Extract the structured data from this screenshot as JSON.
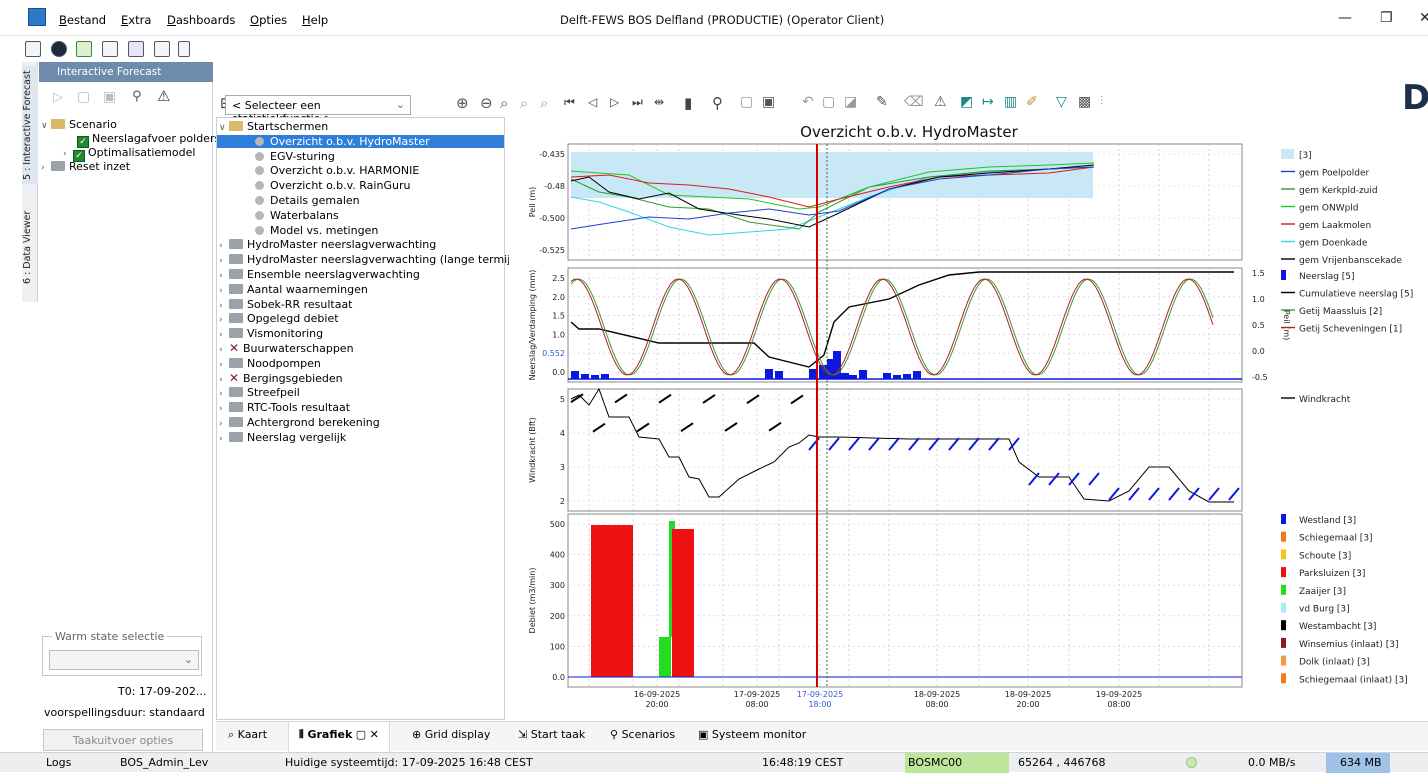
{
  "window": {
    "title": "Delft-FEWS BOS Delfland (PRODUCTIE)  (Operator Client)",
    "minimize": "—",
    "maximize": "❐",
    "close": "✕"
  },
  "menu": [
    "Bestand",
    "Extra",
    "Dashboards",
    "Opties",
    "Help"
  ],
  "left_tabs": [
    "5 : Interactive Forecast",
    "6 : Data Viewer"
  ],
  "forecast_panel": {
    "title": "Interactive Forecast",
    "tree": [
      {
        "label": "Scenario",
        "type": "folder"
      },
      {
        "label": "Neerslagafvoer polders",
        "type": "checked"
      },
      {
        "label": "Optimalisatiemodel",
        "type": "checked"
      },
      {
        "label": "Reset inzet",
        "type": "folder"
      }
    ],
    "warm_state_label": "Warm state selectie",
    "t0": "T0:  17-09-202...",
    "duration": "voorspellingsduur:  standaard",
    "options_button": "Taakuitvoer opties"
  },
  "stat_select": {
    "value": "< Selecteer een statistiekfunctie >"
  },
  "display_tree": [
    {
      "label": "Startschermen",
      "type": "open"
    },
    {
      "label": "Overzicht o.b.v. HydroMaster",
      "type": "dot",
      "selected": true
    },
    {
      "label": "EGV-sturing",
      "type": "dot"
    },
    {
      "label": "Overzicht o.b.v. HARMONIE",
      "type": "dot"
    },
    {
      "label": "Overzicht o.b.v. RainGuru",
      "type": "dot"
    },
    {
      "label": "Details gemalen",
      "type": "dot"
    },
    {
      "label": "Waterbalans",
      "type": "dot"
    },
    {
      "label": "Model vs. metingen",
      "type": "dot"
    },
    {
      "label": "HydroMaster neerslagverwachting",
      "type": "folder"
    },
    {
      "label": "HydroMaster neerslagverwachting (lange termijn)",
      "type": "folder"
    },
    {
      "label": "Ensemble neerslagverwachting",
      "type": "folder"
    },
    {
      "label": "Aantal waarnemingen",
      "type": "folder"
    },
    {
      "label": "Sobek-RR resultaat",
      "type": "folder"
    },
    {
      "label": "Opgelegd debiet",
      "type": "folder"
    },
    {
      "label": "Vismonitoring",
      "type": "folder"
    },
    {
      "label": "Buurwaterschappen",
      "type": "xfolder"
    },
    {
      "label": "Noodpompen",
      "type": "folder"
    },
    {
      "label": "Bergingsgebieden",
      "type": "xfolder"
    },
    {
      "label": "Streefpeil",
      "type": "folder"
    },
    {
      "label": "RTC-Tools resultaat",
      "type": "folder"
    },
    {
      "label": "Achtergrond berekening",
      "type": "folder"
    },
    {
      "label": "Neerslag vergelijk",
      "type": "folder"
    }
  ],
  "chart_data": {
    "title": "Overzicht o.b.v. HydroMaster",
    "x_ticks": [
      "16-09-2025\n20:00",
      "17-09-2025\n08:00",
      "17-09-2025\n18:00",
      "18-09-2025\n08:00",
      "18-09-2025\n20:00",
      "19-09-2025\n08:00"
    ],
    "t0_label": "17-09-2025\n18:00",
    "panels": [
      {
        "type": "line",
        "ylabel": "Peil (m)",
        "yticks": [
          "-0.435",
          "-0.48",
          "-0.500",
          "-0.525"
        ],
        "band_label": "[3]",
        "series": [
          {
            "name": "gem Poelpolder",
            "color": "#1f3fd1"
          },
          {
            "name": "gem Kerkpld-zuid",
            "color": "#2d9a2d"
          },
          {
            "name": "gem ONWpld",
            "color": "#21c421"
          },
          {
            "name": "gem Laakmolen",
            "color": "#e01a1a"
          },
          {
            "name": "gem Doenkade",
            "color": "#33d6e6"
          },
          {
            "name": "gem Vrijenbanscekade",
            "color": "#000000"
          }
        ]
      },
      {
        "type": "bar+line",
        "ylabel": "Neerslag/Verdamping (mm)",
        "y2label": "Peil (m)",
        "yticks": [
          "2.5",
          "2.0",
          "1.5",
          "1.0",
          "0.552",
          "0.0"
        ],
        "y2ticks": [
          "1.5",
          "1.0",
          "0.5",
          "0.0",
          "-0.5"
        ],
        "series": [
          {
            "name": "Neerslag [5]",
            "color": "#0a18e0"
          },
          {
            "name": "Cumulatieve neerslag [5]",
            "color": "#000000"
          },
          {
            "name": "Getij Maassluis [2]",
            "color": "#3a9a3a"
          },
          {
            "name": "Getij Scheveningen [1]",
            "color": "#b22222"
          }
        ]
      },
      {
        "type": "line",
        "ylabel": "Windkracht (Bft)",
        "yticks": [
          "5",
          "4",
          "3",
          "2"
        ],
        "series": [
          {
            "name": "Windkracht",
            "color": "#000000"
          }
        ]
      },
      {
        "type": "bar",
        "ylabel": "Debiet (m3/min)",
        "yticks": [
          "500",
          "400",
          "300",
          "200",
          "100",
          "0.0"
        ],
        "series": [
          {
            "name": "Westland [3]",
            "color": "#0a18e0"
          },
          {
            "name": "Schiegemaal [3]",
            "color": "#f07b1a"
          },
          {
            "name": "Schoute [3]",
            "color": "#f5c518"
          },
          {
            "name": "Parksluizen [3]",
            "color": "#ee1111"
          },
          {
            "name": "Zaaijer [3]",
            "color": "#22dd22"
          },
          {
            "name": "vd Burg [3]",
            "color": "#a8ecf5"
          },
          {
            "name": "Westambacht [3]",
            "color": "#000000"
          },
          {
            "name": "Winsemius (inlaat) [3]",
            "color": "#8b1a1a"
          },
          {
            "name": "Dolk (inlaat) [3]",
            "color": "#f09a4a"
          },
          {
            "name": "Schiegemaal (inlaat) [3]",
            "color": "#f07b1a"
          }
        ]
      }
    ]
  },
  "bottom_tabs": [
    "Kaart",
    "Grafiek",
    "Grid display",
    "Start taak",
    "Scenarios",
    "Systeem monitor"
  ],
  "status": {
    "logs": "Logs",
    "user": "BOS_Admin_Lev",
    "systime": "Huidige systeemtijd: 17-09-2025 16:48 CEST",
    "clock": "16:48:19 CEST",
    "server": "BOSMC00",
    "coords": "65264 , 446768",
    "rate": "0.0 MB/s",
    "memory": "634 MB"
  },
  "brand_letter": "D"
}
